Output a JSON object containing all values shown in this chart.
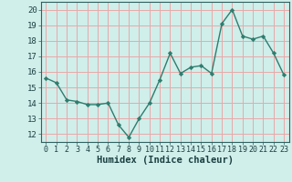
{
  "x": [
    0,
    1,
    2,
    3,
    4,
    5,
    6,
    7,
    8,
    9,
    10,
    11,
    12,
    13,
    14,
    15,
    16,
    17,
    18,
    19,
    20,
    21,
    22,
    23
  ],
  "y": [
    15.6,
    15.3,
    14.2,
    14.1,
    13.9,
    13.9,
    14.0,
    12.6,
    11.8,
    13.0,
    14.0,
    15.5,
    17.2,
    15.9,
    16.3,
    16.4,
    15.9,
    19.1,
    20.0,
    18.3,
    18.1,
    18.3,
    17.2,
    15.8
  ],
  "line_color": "#2e7d6e",
  "bg_color": "#d0eeea",
  "grid_color": "#e8a8a8",
  "xlabel": "Humidex (Indice chaleur)",
  "xlim": [
    -0.5,
    23.5
  ],
  "ylim": [
    11.5,
    20.5
  ],
  "yticks": [
    12,
    13,
    14,
    15,
    16,
    17,
    18,
    19,
    20
  ],
  "xticks": [
    0,
    1,
    2,
    3,
    4,
    5,
    6,
    7,
    8,
    9,
    10,
    11,
    12,
    13,
    14,
    15,
    16,
    17,
    18,
    19,
    20,
    21,
    22,
    23
  ],
  "marker": "D",
  "markersize": 2.2,
  "linewidth": 1.0,
  "xlabel_fontsize": 7.5,
  "tick_fontsize": 6.0,
  "ytick_fontsize": 6.5
}
